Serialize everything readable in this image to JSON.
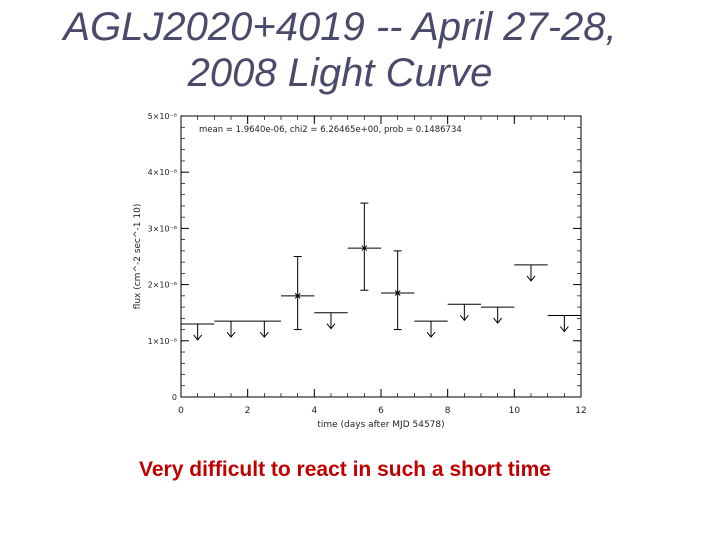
{
  "slide": {
    "title_line1": "AGLJ2020+4019 -- April 27-28,",
    "title_line2": "2008 Light Curve",
    "caption": "Very difficult to react in such a short time"
  },
  "chart_data": {
    "type": "scatter",
    "title": "",
    "xlabel": "time (days after MJD 54578)",
    "ylabel": "flux (cm^-2 sec^-1 10)",
    "annotation": "mean = 1.9640e-06, chi2 = 6.26465e+00, prob = 0.1486734",
    "xlim": [
      0,
      12
    ],
    "ylim": [
      0,
      5e-06
    ],
    "x_ticks": [
      0,
      2,
      4,
      6,
      8,
      10,
      12
    ],
    "x_tick_labels": [
      "0",
      "2",
      "4",
      "6",
      "8",
      "10",
      "12"
    ],
    "y_ticks": [
      0,
      1e-06,
      2e-06,
      3e-06,
      4e-06,
      5e-06
    ],
    "y_tick_labels": [
      "0",
      "1×10⁻⁶",
      "2×10⁻⁶",
      "3×10⁻⁶",
      "4×10⁻⁶",
      "5×10⁻⁶"
    ],
    "points": [
      {
        "x": 3.5,
        "xerr": 0.5,
        "y": 1.8e-06,
        "y_low": 1.2e-06,
        "y_high": 2.5e-06
      },
      {
        "x": 5.5,
        "xerr": 0.5,
        "y": 2.65e-06,
        "y_low": 1.9e-06,
        "y_high": 3.45e-06
      },
      {
        "x": 6.5,
        "xerr": 0.5,
        "y": 1.85e-06,
        "y_low": 1.2e-06,
        "y_high": 2.6e-06
      }
    ],
    "upper_limits": [
      {
        "x": 0.5,
        "xerr": 0.5,
        "y": 1.3e-06,
        "arrow": true
      },
      {
        "x": 1.5,
        "xerr": 0.5,
        "y": 1.35e-06,
        "arrow": true
      },
      {
        "x": 2.5,
        "xerr": 0.5,
        "y": 1.35e-06,
        "arrow": true
      },
      {
        "x": 4.5,
        "xerr": 0.5,
        "y": 1.5e-06,
        "arrow": true
      },
      {
        "x": 7.5,
        "xerr": 0.5,
        "y": 1.35e-06,
        "arrow": true
      },
      {
        "x": 8.5,
        "xerr": 0.5,
        "y": 1.65e-06,
        "arrow": true
      },
      {
        "x": 9.5,
        "xerr": 0.5,
        "y": 1.6e-06,
        "arrow": true
      },
      {
        "x": 10.5,
        "xerr": 0.5,
        "y": 2.35e-06,
        "arrow": true
      },
      {
        "x": 11.5,
        "xerr": 0.5,
        "y": 1.45e-06,
        "arrow": true
      }
    ]
  }
}
